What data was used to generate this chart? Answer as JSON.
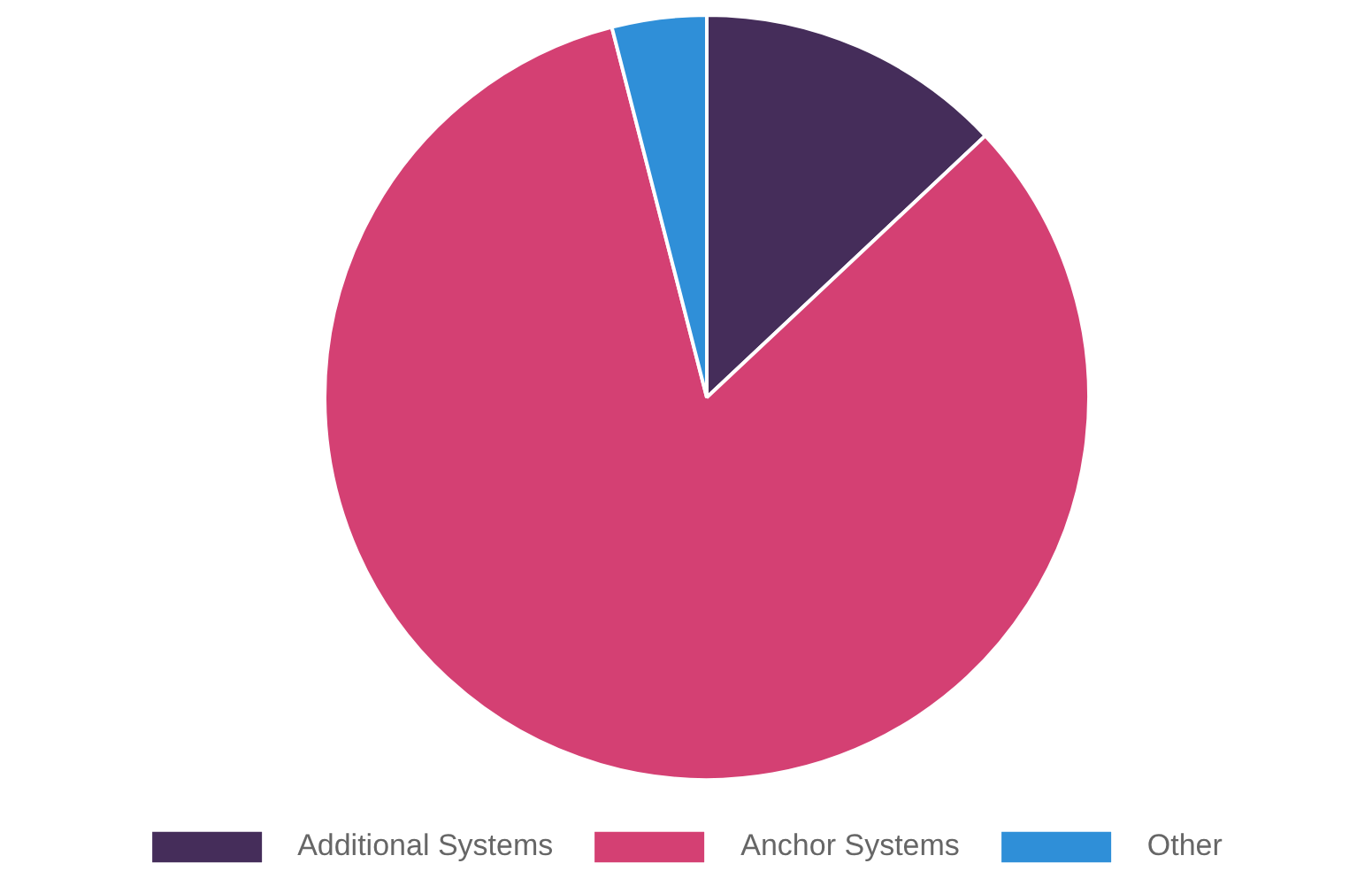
{
  "chart_data": {
    "type": "pie",
    "categories": [
      "Additional Systems",
      "Anchor Systems",
      "Other"
    ],
    "values": [
      13,
      83,
      4
    ],
    "colors": [
      "#452d5a",
      "#d44073",
      "#2f8fd8"
    ],
    "legend": "bottom"
  }
}
